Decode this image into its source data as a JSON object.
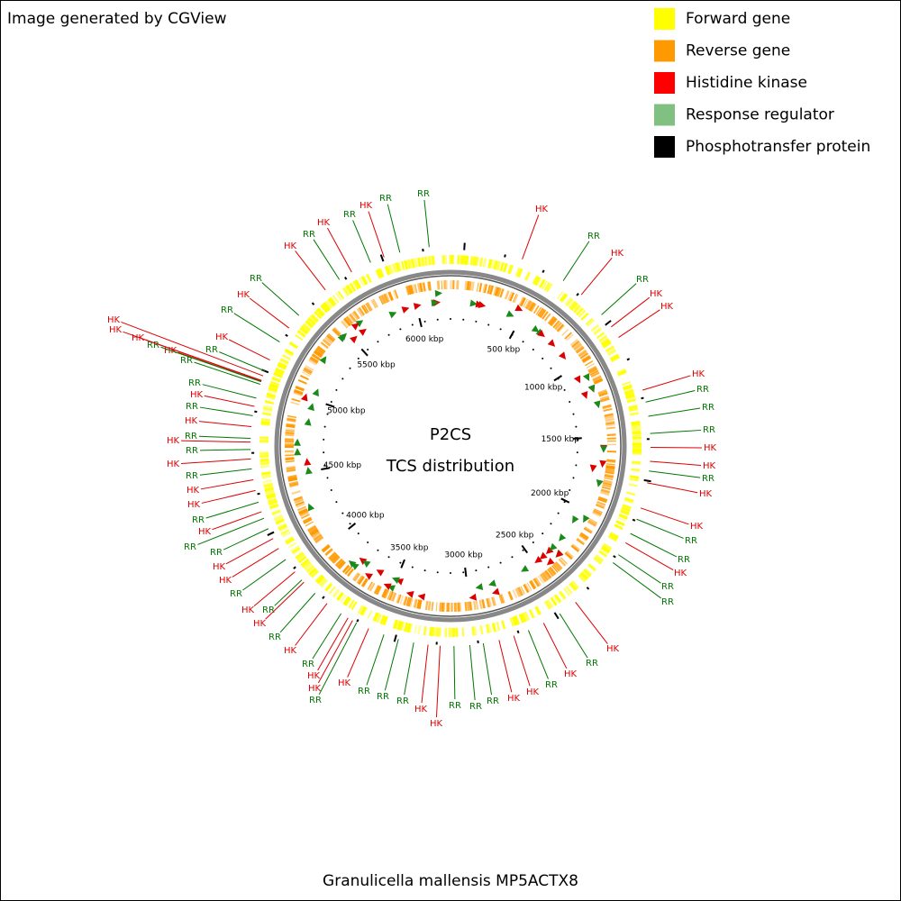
{
  "header": {
    "credit": "Image generated by CGView"
  },
  "legend": [
    {
      "label": "Forward gene",
      "color": "#ffff00"
    },
    {
      "label": "Reverse gene",
      "color": "#ff9900"
    },
    {
      "label": "Histidine kinase",
      "color": "#ff0000"
    },
    {
      "label": "Response regulator",
      "color": "#80c080"
    },
    {
      "label": "Phosphotransfer protein",
      "color": "#000000"
    }
  ],
  "map": {
    "center_title": "P2CS",
    "center_subtitle": "TCS distribution",
    "caption": "Granulicella mallensis MP5ACTX8",
    "xlim": [
      0,
      6237
    ],
    "ticks": [
      {
        "value": 500,
        "label": "500 kbp"
      },
      {
        "value": 1000,
        "label": "1000 kbp"
      },
      {
        "value": 1500,
        "label": "1500 kbp"
      },
      {
        "value": 2000,
        "label": "2000 kbp"
      },
      {
        "value": 2500,
        "label": "2500 kbp"
      },
      {
        "value": 3000,
        "label": "3000 kbp"
      },
      {
        "value": 3500,
        "label": "3500 kbp"
      },
      {
        "value": 4000,
        "label": "4000 kbp"
      },
      {
        "value": 4500,
        "label": "4500 kbp"
      },
      {
        "value": 5000,
        "label": "5000 kbp"
      },
      {
        "value": 5500,
        "label": "5500 kbp"
      },
      {
        "value": 6000,
        "label": "6000 kbp"
      }
    ],
    "labels": [
      {
        "text": "RR",
        "color": "#007700"
      },
      {
        "text": "HK",
        "color": "#dd0000"
      },
      {
        "text": "RR",
        "color": "#007700"
      },
      {
        "text": "HK",
        "color": "#dd0000"
      },
      {
        "text": "RR",
        "color": "#007700"
      },
      {
        "text": "HK",
        "color": "#dd0000"
      },
      {
        "text": "HK",
        "color": "#dd0000"
      },
      {
        "text": "HK",
        "color": "#dd0000"
      },
      {
        "text": "RR",
        "color": "#007700"
      },
      {
        "text": "RR",
        "color": "#007700"
      },
      {
        "text": "RR",
        "color": "#007700"
      },
      {
        "text": "HK",
        "color": "#dd0000"
      },
      {
        "text": "HK",
        "color": "#dd0000"
      },
      {
        "text": "RR",
        "color": "#007700"
      },
      {
        "text": "HK",
        "color": "#dd0000"
      },
      {
        "text": "HK",
        "color": "#dd0000"
      },
      {
        "text": "RR",
        "color": "#007700"
      },
      {
        "text": "RR",
        "color": "#007700"
      },
      {
        "text": "HK",
        "color": "#dd0000"
      },
      {
        "text": "RR",
        "color": "#007700"
      },
      {
        "text": "RR",
        "color": "#007700"
      },
      {
        "text": "HK",
        "color": "#dd0000"
      },
      {
        "text": "RR",
        "color": "#007700"
      },
      {
        "text": "HK",
        "color": "#dd0000"
      },
      {
        "text": "RR",
        "color": "#007700"
      },
      {
        "text": "HK",
        "color": "#dd0000"
      },
      {
        "text": "HK",
        "color": "#dd0000"
      },
      {
        "text": "RR",
        "color": "#007700"
      },
      {
        "text": "RR",
        "color": "#007700"
      },
      {
        "text": "RR",
        "color": "#007700"
      },
      {
        "text": "HK",
        "color": "#dd0000"
      },
      {
        "text": "HK",
        "color": "#dd0000"
      },
      {
        "text": "RR",
        "color": "#007700"
      },
      {
        "text": "RR",
        "color": "#007700"
      },
      {
        "text": "RR",
        "color": "#007700"
      },
      {
        "text": "HK",
        "color": "#dd0000"
      },
      {
        "text": "HK",
        "color": "#dd0000"
      },
      {
        "text": "RR",
        "color": "#007700"
      },
      {
        "text": "HK",
        "color": "#dd0000"
      },
      {
        "text": "RR",
        "color": "#007700"
      },
      {
        "text": "HK",
        "color": "#dd0000"
      },
      {
        "text": "RR",
        "color": "#007700"
      },
      {
        "text": "HK",
        "color": "#dd0000"
      },
      {
        "text": "RR",
        "color": "#007700"
      },
      {
        "text": "HK",
        "color": "#dd0000"
      },
      {
        "text": "RR",
        "color": "#007700"
      },
      {
        "text": "HK",
        "color": "#dd0000"
      },
      {
        "text": "HK",
        "color": "#dd0000"
      },
      {
        "text": "RR",
        "color": "#007700"
      },
      {
        "text": "RR",
        "color": "#007700"
      },
      {
        "text": "HK",
        "color": "#dd0000"
      },
      {
        "text": "RR",
        "color": "#007700"
      },
      {
        "text": "HK",
        "color": "#dd0000"
      },
      {
        "text": "HK",
        "color": "#dd0000"
      },
      {
        "text": "RR",
        "color": "#007700"
      },
      {
        "text": "HK",
        "color": "#dd0000"
      },
      {
        "text": "RR",
        "color": "#007700"
      },
      {
        "text": "HK",
        "color": "#dd0000"
      },
      {
        "text": "RR",
        "color": "#007700"
      },
      {
        "text": "HK",
        "color": "#dd0000"
      },
      {
        "text": "RR",
        "color": "#007700"
      },
      {
        "text": "HK",
        "color": "#dd0000"
      },
      {
        "text": "RR",
        "color": "#007700"
      },
      {
        "text": "RR",
        "color": "#007700"
      },
      {
        "text": "HK",
        "color": "#dd0000"
      },
      {
        "text": "RR",
        "color": "#007700"
      },
      {
        "text": "HK",
        "color": "#dd0000"
      },
      {
        "text": "HK",
        "color": "#dd0000"
      },
      {
        "text": "HK",
        "color": "#dd0000"
      },
      {
        "text": "RR",
        "color": "#007700"
      },
      {
        "text": "HK",
        "color": "#dd0000"
      },
      {
        "text": "RR",
        "color": "#007700"
      },
      {
        "text": "HK",
        "color": "#dd0000"
      },
      {
        "text": "RR",
        "color": "#007700"
      },
      {
        "text": "HK",
        "color": "#dd0000"
      },
      {
        "text": "RR",
        "color": "#007700"
      },
      {
        "text": "HK",
        "color": "#dd0000"
      },
      {
        "text": "RR",
        "color": "#007700"
      },
      {
        "text": "HK",
        "color": "#dd0000"
      },
      {
        "text": "RR",
        "color": "#007700"
      }
    ]
  }
}
